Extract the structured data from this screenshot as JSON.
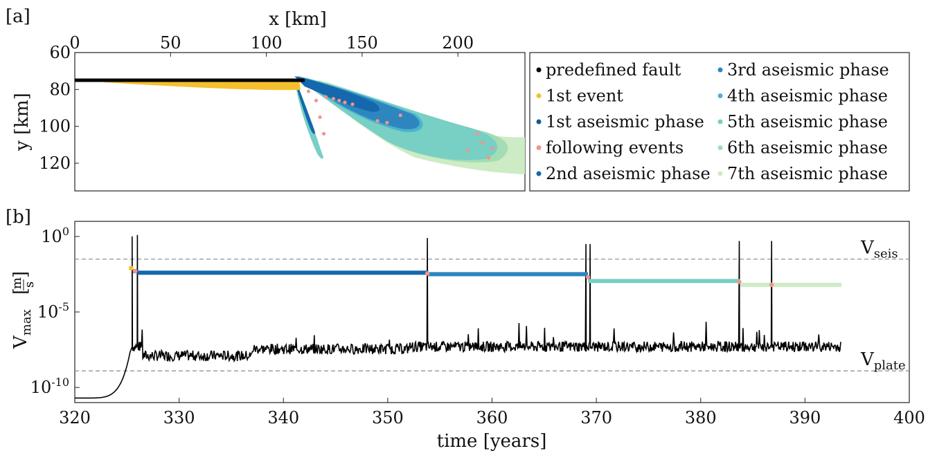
{
  "figure": {
    "panel_a_tag": "[a]",
    "panel_b_tag": "[b]"
  },
  "chart_data": [
    {
      "type": "scatter",
      "panel": "[a]",
      "xlabel": "x [km]",
      "ylabel": "y [km]",
      "xlim": [
        0,
        235
      ],
      "ylim": [
        60,
        135
      ],
      "y_inverted": true,
      "x_axis_position": "top",
      "xticks": [
        "0",
        "50",
        "100",
        "150",
        "200"
      ],
      "yticks": [
        "60",
        "80",
        "100",
        "120"
      ],
      "legend_position": "right, outside",
      "series": [
        {
          "name": "predefined fault",
          "color": "#000000"
        },
        {
          "name": "1st event",
          "color": "#f5c02e"
        },
        {
          "name": "1st aseismic phase",
          "color": "#0e5b96"
        },
        {
          "name": "following events",
          "color": "#f4948a"
        },
        {
          "name": "2nd aseismic phase",
          "color": "#1568ad"
        },
        {
          "name": "3rd aseismic phase",
          "color": "#2e86bf"
        },
        {
          "name": "4th aseismic phase",
          "color": "#4ab3cf"
        },
        {
          "name": "5th aseismic phase",
          "color": "#78cfc4"
        },
        {
          "name": "6th aseismic phase",
          "color": "#a4dcb3"
        },
        {
          "name": "7th aseismic phase",
          "color": "#cdebc4"
        }
      ],
      "fault": {
        "x": [
          0,
          120
        ],
        "y": [
          75,
          75
        ]
      },
      "first_event": {
        "x": [
          15,
          120
        ],
        "y": [
          75,
          80
        ]
      },
      "following_events": [
        {
          "x": 122,
          "y": 81
        },
        {
          "x": 126,
          "y": 86
        },
        {
          "x": 131,
          "y": 84
        },
        {
          "x": 135,
          "y": 85
        },
        {
          "x": 138,
          "y": 86
        },
        {
          "x": 141,
          "y": 87
        },
        {
          "x": 145,
          "y": 88
        },
        {
          "x": 158,
          "y": 97
        },
        {
          "x": 163,
          "y": 98
        },
        {
          "x": 170,
          "y": 94
        },
        {
          "x": 205,
          "y": 113
        },
        {
          "x": 210,
          "y": 104
        },
        {
          "x": 213,
          "y": 109
        },
        {
          "x": 218,
          "y": 112
        },
        {
          "x": 216,
          "y": 117
        },
        {
          "x": 128,
          "y": 95
        },
        {
          "x": 130,
          "y": 104
        }
      ]
    },
    {
      "type": "line",
      "panel": "[b]",
      "xlabel": "time [years]",
      "ylabel": "V_max [m/s]",
      "ylabel_main": "V",
      "ylabel_sub": "max",
      "ylabel_unit_num": "m",
      "ylabel_unit_den": "s",
      "xlim": [
        320,
        400
      ],
      "ylim_log10": [
        -11,
        1
      ],
      "yscale": "log",
      "xticks": [
        "320",
        "330",
        "340",
        "350",
        "360",
        "370",
        "380",
        "390",
        "400"
      ],
      "yticks": [
        {
          "value": 0,
          "base": "10",
          "exp": "0"
        },
        {
          "value": -5,
          "base": "10",
          "exp": "-5"
        },
        {
          "value": -10,
          "base": "10",
          "exp": "-10"
        }
      ],
      "reference_lines": [
        {
          "label_main": "V",
          "label_sub": "seis",
          "log10_value": -1.5
        },
        {
          "label_main": "V",
          "label_sub": "plate",
          "log10_value": -8.9
        }
      ],
      "vmax_series": {
        "color": "#000000",
        "background_log10": -7.3,
        "spike_times": [
          325.5,
          326.0,
          353.8,
          369.0,
          369.4,
          383.7,
          386.8
        ],
        "spike_peak_log10": [
          0.0,
          0.1,
          -0.1,
          -0.5,
          -0.5,
          -0.3,
          -0.3
        ]
      },
      "phases": [
        {
          "name": "1st event",
          "t_start": 325.2,
          "t_end": 325.6,
          "log10_v": -2.1,
          "color": "#f5c02e"
        },
        {
          "name": "1st aseismic phase",
          "t_start": 325.6,
          "t_end": 326.0,
          "log10_v": -2.3,
          "color": "#0e5b96"
        },
        {
          "name": "2nd aseismic phase",
          "t_start": 326.0,
          "t_end": 353.9,
          "log10_v": -2.4,
          "color": "#1568ad"
        },
        {
          "name": "3rd aseismic phase",
          "t_start": 353.9,
          "t_end": 369.2,
          "log10_v": -2.5,
          "color": "#2e86bf"
        },
        {
          "name": "5th aseismic phase",
          "t_start": 369.2,
          "t_end": 383.8,
          "log10_v": -2.95,
          "color": "#78cfc4"
        },
        {
          "name": "7th aseismic phase",
          "t_start": 383.8,
          "t_end": 393.5,
          "log10_v": -3.2,
          "color": "#cdebc4"
        }
      ],
      "following_events": [
        {
          "t": 325.8,
          "log10_v": -2.3
        },
        {
          "t": 353.8,
          "log10_v": -2.45
        },
        {
          "t": 369.2,
          "log10_v": -2.7
        },
        {
          "t": 383.7,
          "log10_v": -3.0
        },
        {
          "t": 386.8,
          "log10_v": -3.2
        }
      ]
    }
  ]
}
